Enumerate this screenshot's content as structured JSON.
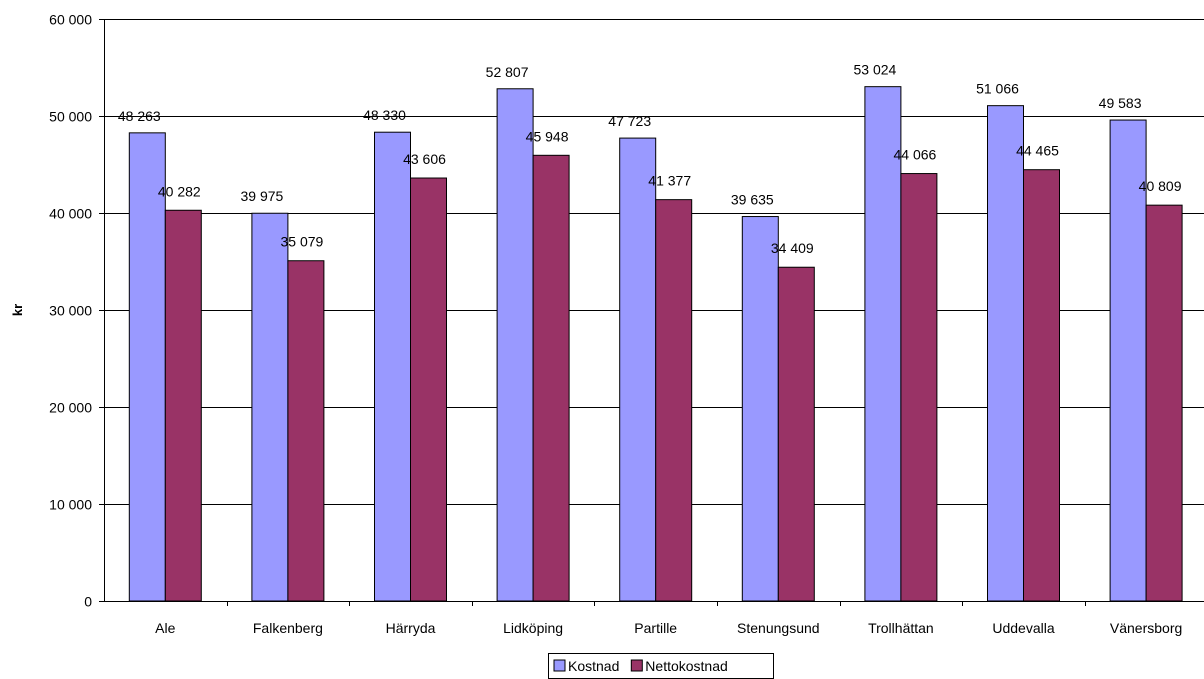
{
  "chart_data": {
    "type": "bar",
    "title": "",
    "xlabel": "",
    "ylabel": "kr",
    "ylim": [
      0,
      60000
    ],
    "yticks": [
      0,
      10000,
      20000,
      30000,
      40000,
      50000,
      60000
    ],
    "ytick_labels": [
      "0",
      "10 000",
      "20 000",
      "30 000",
      "40 000",
      "50 000",
      "60 000"
    ],
    "grid": true,
    "legend_position": "bottom",
    "categories": [
      "Ale",
      "Falkenberg",
      "Härryda",
      "Lidköping",
      "Partille",
      "Stenungsund",
      "Trollhättan",
      "Uddevalla",
      "Vänersborg"
    ],
    "series": [
      {
        "name": "Kostnad",
        "color": "#9999ff",
        "values": [
          48263,
          39975,
          48330,
          52807,
          47723,
          39635,
          53024,
          51066,
          49583
        ],
        "labels": [
          "48 263",
          "39 975",
          "48 330",
          "52 807",
          "47 723",
          "39 635",
          "53 024",
          "51 066",
          "49 583"
        ]
      },
      {
        "name": "Nettokostnad",
        "color": "#993366",
        "values": [
          40282,
          35079,
          43606,
          45948,
          41377,
          34409,
          44066,
          44465,
          40809
        ],
        "labels": [
          "40 282",
          "35 079",
          "43 606",
          "45 948",
          "41 377",
          "34 409",
          "44 066",
          "44 465",
          "40 809"
        ]
      }
    ]
  }
}
